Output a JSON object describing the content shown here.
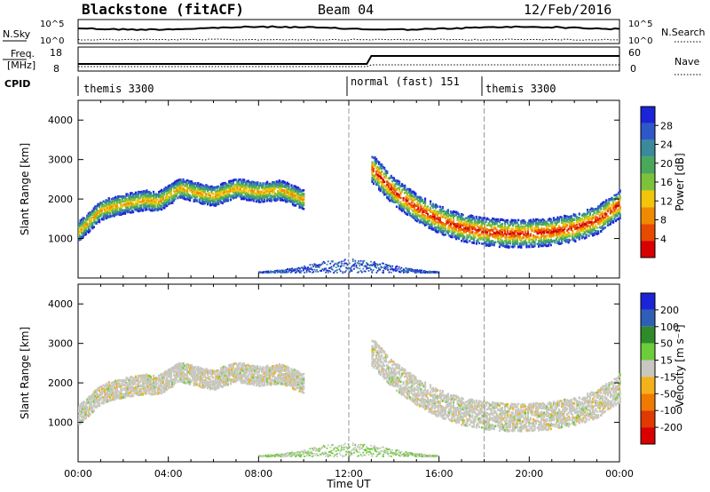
{
  "header": {
    "station": "Blackstone (fitACF)",
    "beam": "Beam 04",
    "date": "12/Feb/2016"
  },
  "summary": {
    "nsky_label": "N.Sky",
    "nsearch_label": "N.Search",
    "freq_label_1": "Freq.",
    "freq_label_2": "[MHz]",
    "nave_label": "Nave",
    "cpid_label": "CPID",
    "nsky_ticks": [
      "10^5",
      "10^0"
    ],
    "nsearch_ticks": [
      "10^5",
      "10^0"
    ],
    "freq_ticks": [
      "18",
      "8"
    ],
    "nave_ticks": [
      "60",
      "0"
    ]
  },
  "cpid": {
    "segments": [
      {
        "label": "themis 3300",
        "start_hour": 0.0
      },
      {
        "label": "normal (fast) 151",
        "start_hour": 12.0
      },
      {
        "label": "themis 3300",
        "start_hour": 18.0
      }
    ]
  },
  "colors": {
    "power": [
      "#1c24d8",
      "#2e58c8",
      "#3a8a9a",
      "#4aa85a",
      "#7cc23a",
      "#f2c40a",
      "#f08a00",
      "#e84a00",
      "#d80000"
    ],
    "velocity": [
      "#1c24d8",
      "#2f5fb4",
      "#2f8a2a",
      "#6ccc3a",
      "#c8c8c0",
      "#f4b21a",
      "#f07a00",
      "#e03a00",
      "#d80000"
    ]
  },
  "chart_data": [
    {
      "type": "heatmap",
      "name": "Power",
      "ylabel": "Slant Range [km]",
      "xlabel": "",
      "ylim": [
        0,
        4500
      ],
      "xlim": [
        0,
        24
      ],
      "yticks": [
        "1000",
        "2000",
        "3000",
        "4000"
      ],
      "colorbar": {
        "label": "Power [dB]",
        "ticks": [
          "28",
          "24",
          "20",
          "16",
          "12",
          "8",
          "4"
        ],
        "range": [
          0,
          30
        ]
      },
      "scatter_bands": [
        {
          "x": [
            0.0,
            1.0,
            2.0,
            3.0,
            3.5,
            4.5,
            5.5,
            6.0,
            7.0,
            8.0,
            9.0,
            10.0
          ],
          "y_center": [
            1200,
            1750,
            1900,
            2000,
            1950,
            2300,
            2150,
            2100,
            2300,
            2200,
            2250,
            2000
          ],
          "value": 18
        },
        {
          "x": [
            13.0,
            14.0,
            15.0,
            16.0,
            17.0,
            18.0,
            19.0,
            20.0,
            21.0,
            22.0,
            23.0,
            24.0
          ],
          "y_center": [
            2800,
            2200,
            1800,
            1500,
            1300,
            1200,
            1150,
            1150,
            1200,
            1300,
            1500,
            1900
          ],
          "value": 24
        }
      ]
    },
    {
      "type": "heatmap",
      "name": "Velocity",
      "ylabel": "Slant Range [km]",
      "xlabel": "Time UT",
      "ylim": [
        0,
        4500
      ],
      "xlim": [
        0,
        24
      ],
      "yticks": [
        "1000",
        "2000",
        "3000",
        "4000"
      ],
      "xticks": [
        "00:00",
        "04:00",
        "08:00",
        "12:00",
        "16:00",
        "20:00",
        "00:00"
      ],
      "colorbar": {
        "label": "Velocity [m s⁻¹]",
        "ticks": [
          "200",
          "100",
          "50",
          "15",
          "-15",
          "-50",
          "-100",
          "-200"
        ],
        "range": [
          -250,
          250
        ]
      }
    }
  ]
}
